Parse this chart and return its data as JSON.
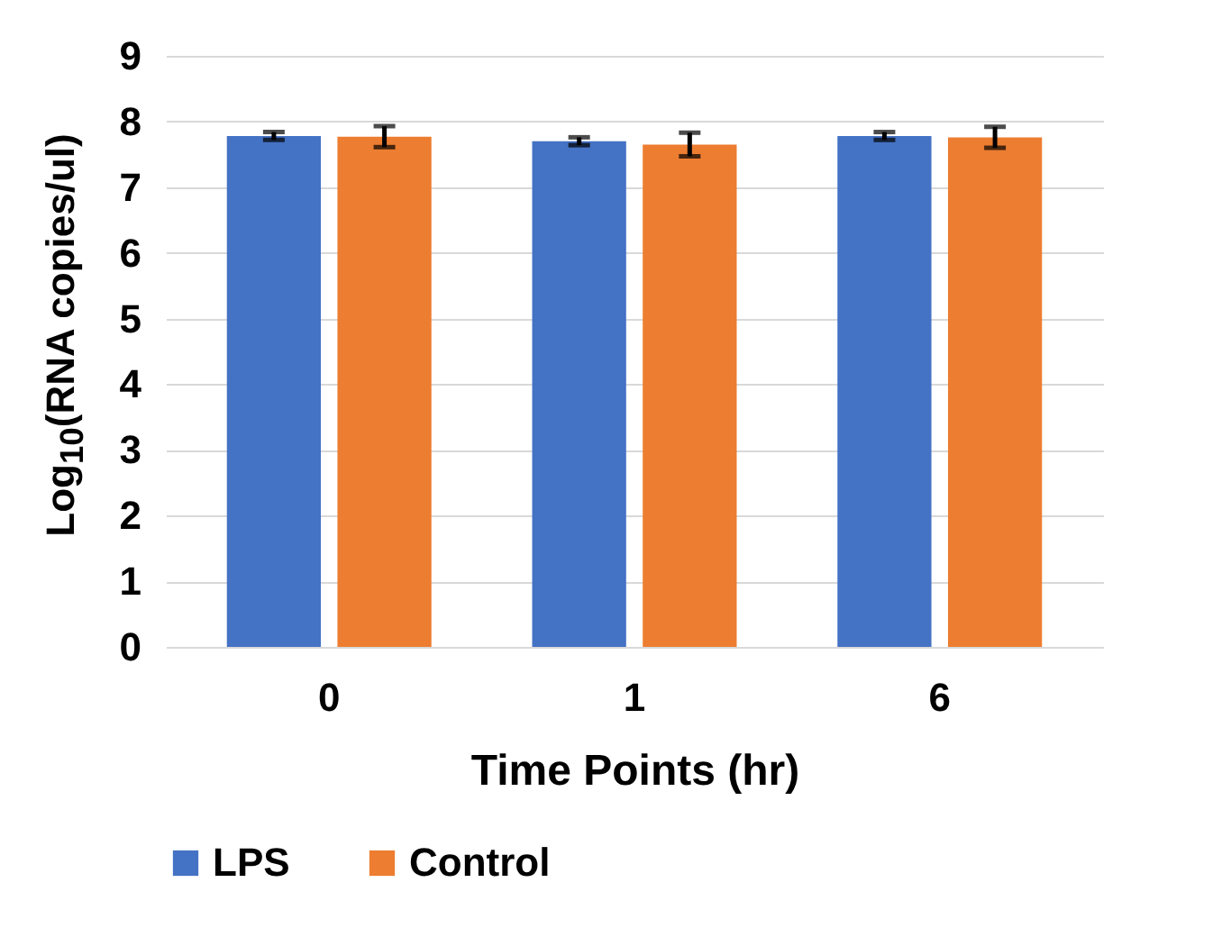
{
  "chart_data": {
    "type": "bar",
    "xlabel": "Time Points (hr)",
    "ylabel": "Log$_{10}$(RNA copies/ul)",
    "categories": [
      "0",
      "1",
      "6"
    ],
    "series": [
      {
        "name": "LPS",
        "color": "#4472c4",
        "values": [
          7.78,
          7.7,
          7.78
        ],
        "errors": [
          0.06,
          0.06,
          0.06
        ]
      },
      {
        "name": "Control",
        "color": "#ed7d31",
        "values": [
          7.77,
          7.65,
          7.76
        ],
        "errors": [
          0.16,
          0.18,
          0.16
        ]
      }
    ],
    "ylim": [
      0,
      9
    ],
    "yticks": [
      0,
      1,
      2,
      3,
      4,
      5,
      6,
      7,
      8,
      9
    ],
    "grid": "y",
    "legend": "bottom"
  }
}
